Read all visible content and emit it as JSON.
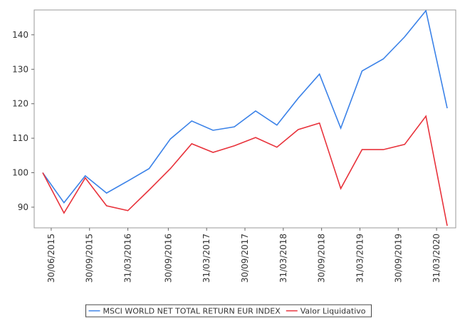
{
  "chart_data": {
    "type": "line",
    "x": [
      0,
      1,
      2,
      3,
      4,
      5,
      6,
      7,
      8,
      9,
      10,
      11,
      12,
      13,
      14,
      15,
      16,
      17,
      18,
      19
    ],
    "xlim": [
      -0.4,
      19.4
    ],
    "xticks": [
      {
        "value": 0.4,
        "label": "30/06/2015"
      },
      {
        "value": 2.2,
        "label": "30/09/2015"
      },
      {
        "value": 4.0,
        "label": "31/03/2016"
      },
      {
        "value": 5.9,
        "label": "30/09/2016"
      },
      {
        "value": 7.7,
        "label": "31/03/2017"
      },
      {
        "value": 9.5,
        "label": "30/09/2017"
      },
      {
        "value": 11.3,
        "label": "31/03/2018"
      },
      {
        "value": 13.1,
        "label": "30/09/2018"
      },
      {
        "value": 14.9,
        "label": "31/03/2019"
      },
      {
        "value": 16.7,
        "label": "30/09/2019"
      },
      {
        "value": 18.5,
        "label": "31/03/2020"
      }
    ],
    "ylim": [
      84,
      147.2
    ],
    "yticks": [
      90,
      100,
      110,
      120,
      130,
      140
    ],
    "series": [
      {
        "name": "MSCI WORLD NET TOTAL RETURN EUR INDEX",
        "color": "#3b82e8",
        "values": [
          100,
          91.3,
          99.1,
          94.1,
          97.6,
          101.2,
          109.8,
          115,
          112.3,
          113.3,
          117.9,
          113.8,
          121.6,
          128.6,
          112.9,
          129.5,
          133,
          139.4,
          147,
          118.7
        ]
      },
      {
        "name": "Valor Liquidativo",
        "color": "#e8323b",
        "values": [
          100,
          88.3,
          98.5,
          90.4,
          89,
          95,
          101.2,
          108.4,
          105.9,
          107.8,
          110.2,
          107.4,
          112.5,
          114.4,
          95.4,
          106.7,
          106.7,
          108.2,
          116.4,
          84.6
        ]
      }
    ]
  }
}
